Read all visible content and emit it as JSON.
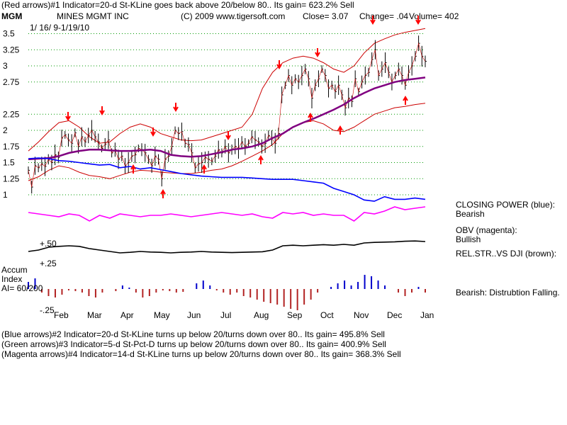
{
  "header": {
    "line1": "(Red arrows)#1 Indicator=20-d St-KLine goes back above 20/below 80..  Its gain= 623.2% Sell",
    "ticker": "MGM",
    "company": "MINES MGMT INC",
    "copyright": "(C) 2009 www.tigersoft.com",
    "close": "Close=  3.07",
    "change": "Change= .04",
    "volume": "Volume= 402",
    "date_range": "1/ 16/ 9-1/19/10"
  },
  "chart_data": {
    "type": "line",
    "title": "MINES MGMT INC",
    "price_axis_ticks": [
      "3.5",
      "3.25",
      "3",
      "2.75",
      "2.25",
      "2",
      "1.75",
      "1.5",
      "1.25",
      "1"
    ],
    "price_range": [
      1.0,
      3.5
    ],
    "x_tick_labels": [
      "Feb",
      "Mar",
      "Apr",
      "May",
      "Jun",
      "Jul",
      "Aug",
      "Sep",
      "Oct",
      "Nov",
      "Dec",
      "Jan"
    ],
    "close": [
      1.38,
      1.12,
      1.45,
      1.42,
      1.48,
      1.44,
      1.55,
      1.5,
      1.62,
      1.58,
      1.88,
      1.93,
      1.85,
      1.8,
      1.96,
      1.75,
      1.9,
      1.82,
      1.92,
      2.0,
      1.9,
      1.82,
      1.72,
      1.78,
      1.85,
      1.65,
      1.7,
      1.55,
      1.6,
      1.45,
      1.5,
      1.6,
      1.62,
      1.72,
      1.7,
      1.65,
      1.55,
      1.45,
      1.6,
      1.55,
      1.25,
      1.55,
      1.6,
      1.75,
      2.0,
      1.95,
      1.98,
      1.8,
      1.78,
      1.65,
      1.42,
      1.48,
      1.5,
      1.58,
      1.55,
      1.52,
      1.6,
      1.7,
      1.65,
      1.75,
      1.65,
      1.7,
      1.75,
      1.72,
      1.82,
      1.75,
      1.8,
      1.9,
      1.85,
      1.82,
      1.75,
      1.8,
      1.92,
      1.88,
      1.8,
      1.95,
      2.55,
      2.7,
      2.85,
      2.7,
      2.8,
      2.75,
      2.85,
      2.95,
      2.8,
      2.5,
      2.7,
      2.8,
      2.95,
      2.85,
      2.65,
      2.7,
      2.6,
      2.7,
      2.55,
      2.35,
      2.5,
      2.45,
      2.8,
      2.6,
      2.75,
      2.85,
      2.9,
      3.1,
      3.25,
      2.85,
      2.95,
      3.05,
      2.9,
      2.75,
      2.85,
      2.95,
      2.85,
      2.7,
      2.9,
      3.0,
      3.15,
      3.35,
      3.15,
      3.07
    ],
    "ma_thick": [
      1.55,
      1.56,
      1.57,
      1.6,
      1.65,
      1.68,
      1.7,
      1.7,
      1.69,
      1.68,
      1.68,
      1.69,
      1.7,
      1.68,
      1.62,
      1.6,
      1.59,
      1.6,
      1.63,
      1.66,
      1.7,
      1.72,
      1.75,
      1.8,
      1.88,
      1.95,
      2.05,
      2.12,
      2.18,
      2.25,
      2.32,
      2.4,
      2.5,
      2.58,
      2.65,
      2.7,
      2.75,
      2.78,
      2.8,
      2.82
    ],
    "band_upper": [
      1.68,
      1.82,
      1.98,
      2.12,
      2.15,
      2.05,
      1.9,
      1.8,
      1.82,
      1.95,
      2.05,
      2.1,
      2.05,
      1.95,
      1.9,
      1.85,
      1.84,
      1.85,
      1.9,
      1.95,
      2.0,
      2.05,
      2.25,
      2.65,
      2.9,
      3.05,
      3.12,
      3.15,
      3.12,
      3.05,
      2.95,
      2.9,
      3.0,
      3.2,
      3.35,
      3.42,
      3.48,
      3.52,
      3.55,
      3.58
    ],
    "band_lower": [
      1.22,
      1.28,
      1.38,
      1.45,
      1.42,
      1.35,
      1.3,
      1.28,
      1.25,
      1.3,
      1.35,
      1.38,
      1.37,
      1.35,
      1.34,
      1.33,
      1.33,
      1.35,
      1.38,
      1.4,
      1.45,
      1.52,
      1.6,
      1.68,
      1.78,
      1.95,
      2.05,
      2.12,
      2.15,
      2.1,
      2.0,
      1.98,
      2.05,
      2.15,
      2.25,
      2.3,
      2.35,
      2.37,
      2.4,
      2.42
    ],
    "closing_power": [
      1.56,
      1.57,
      1.56,
      1.53,
      1.52,
      1.5,
      1.48,
      1.46,
      1.47,
      1.42,
      1.44,
      1.4,
      1.42,
      1.39,
      1.36,
      1.33,
      1.31,
      1.29,
      1.28,
      1.27,
      1.27,
      1.27,
      1.26,
      1.25,
      1.24,
      1.24,
      1.24,
      1.22,
      1.2,
      1.18,
      1.1,
      1.05,
      1.0,
      0.92,
      0.9,
      0.97,
      0.93,
      0.93,
      0.95,
      0.93
    ],
    "obv": [
      0.88,
      0.87,
      0.86,
      0.85,
      0.87,
      0.86,
      0.82,
      0.86,
      0.84,
      0.87,
      0.86,
      0.85,
      0.86,
      0.86,
      0.87,
      0.86,
      0.85,
      0.86,
      0.87,
      0.88,
      0.87,
      0.86,
      0.87,
      0.85,
      0.84,
      0.88,
      0.87,
      0.88,
      0.86,
      0.87,
      0.86,
      0.86,
      0.82,
      0.88,
      0.87,
      0.89,
      0.92,
      0.9,
      0.91,
      0.92
    ],
    "rel_str": [
      0.0,
      0.05,
      0.15,
      0.18,
      0.2,
      0.18,
      0.1,
      0.05,
      0.0,
      -0.05,
      -0.03,
      0.0,
      -0.02,
      -0.03,
      -0.05,
      -0.03,
      -0.02,
      0.0,
      -0.02,
      -0.03,
      -0.04,
      -0.03,
      -0.02,
      -0.01,
      0.05,
      0.2,
      0.22,
      0.2,
      0.22,
      0.24,
      0.22,
      0.25,
      0.22,
      0.3,
      0.32,
      0.33,
      0.34,
      0.36,
      0.37,
      0.35
    ],
    "rel_str_ticks": [
      "+.50",
      "+.25"
    ],
    "accum_ticks": [
      "+.25",
      "-.25"
    ],
    "accum_index": [
      0.1,
      0.15,
      -0.05,
      -0.1,
      -0.12,
      -0.08,
      -0.02,
      -0.03,
      -0.05,
      -0.1,
      -0.12,
      -0.05,
      0.0,
      -0.03,
      0.05,
      0.02,
      -0.05,
      -0.12,
      -0.1,
      -0.05,
      -0.02,
      -0.03,
      -0.05,
      -0.04,
      0.0,
      0.08,
      0.12,
      0.05,
      -0.02,
      -0.05,
      -0.08,
      -0.05,
      -0.1,
      -0.12,
      -0.15,
      -0.18,
      -0.2,
      -0.22,
      -0.25,
      -0.28,
      -0.3,
      -0.22,
      -0.15,
      -0.05,
      0.0,
      0.03,
      0.08,
      0.12,
      0.05,
      0.1,
      0.2,
      0.18,
      0.12,
      0.05,
      0.0,
      -0.05,
      -0.1,
      -0.05,
      0.03,
      -0.05
    ]
  },
  "labels": {
    "accum": "Accum",
    "index": "Index",
    "ai": "AI= 60/200"
  },
  "right_panel": {
    "closing_power": "CLOSING POWER (blue):",
    "closing_power_state": "Bearish",
    "obv": "OBV (magenta):",
    "obv_state": "Bullish",
    "rel_str": "REL.STR..VS DJI (brown):",
    "accum": "Bearish:  Distrubtion Falling."
  },
  "footer": {
    "line1": "(Blue arrows)#2 Indicator=20-d St-KLine turns up below 20/turns down over 80..  Its gain= 495.8% Sell",
    "line2": "(Green arrows)#3 Indicator=5-d St-Pct-D turns up below 20/turns down over 80..  Its gain= 400.9% Sell",
    "line3": "(Magenta arrows)#4 Indicator=14-d St-KLine turns up below 20/turns down over 80..  Its gain= 368.3% Sell"
  },
  "colors": {
    "price_bars": "#000000",
    "band": "#cc0000",
    "ma_thick": "#800080",
    "closing_power": "#0000ff",
    "obv": "#ff00ff",
    "rel_str": "#000000",
    "accum_neg": "#b22222",
    "accum_pos": "#0000cc",
    "grid": "#009900",
    "arrows": "#ff0000"
  }
}
